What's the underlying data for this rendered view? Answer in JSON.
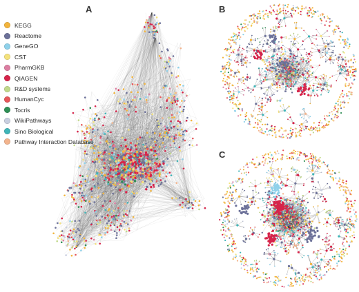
{
  "panels": {
    "a": {
      "label": "A"
    },
    "b": {
      "label": "B"
    },
    "c": {
      "label": "C"
    }
  },
  "legend": {
    "items": [
      {
        "label": "KEGG",
        "color": "#f2b43c"
      },
      {
        "label": "Reactome",
        "color": "#6c7199"
      },
      {
        "label": "GeneGO",
        "color": "#8fd1ea"
      },
      {
        "label": "CST",
        "color": "#f4e27c"
      },
      {
        "label": "PharmGKB",
        "color": "#dc7ea2"
      },
      {
        "label": "QIAGEN",
        "color": "#d6244a"
      },
      {
        "label": "R&D systems",
        "color": "#c1d98a"
      },
      {
        "label": "HumanCyc",
        "color": "#e6575a"
      },
      {
        "label": "Tocris",
        "color": "#2f8f56"
      },
      {
        "label": "WikiPathways",
        "color": "#c9cfe0"
      },
      {
        "label": "Sino Biological",
        "color": "#3fb5b8"
      },
      {
        "label": "Pathway Interaction Database",
        "color": "#f3b48d"
      }
    ]
  },
  "edge_color": "#3a3a3a"
}
